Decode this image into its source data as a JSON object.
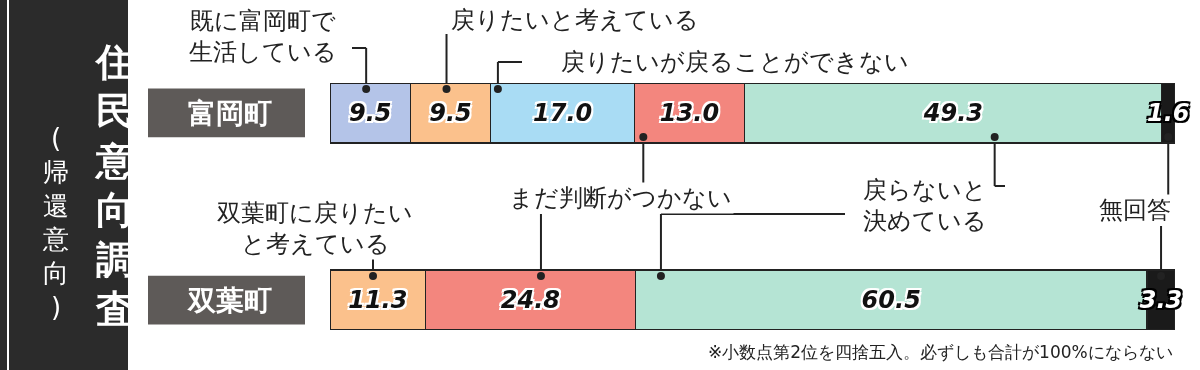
{
  "chart_data": {
    "type": "bar",
    "orientation": "horizontal",
    "stacked": true,
    "title": "住民意向調査",
    "subtitle": "(帰還意向)",
    "categories": [
      "富岡町",
      "双葉町"
    ],
    "series": [
      {
        "color": "#b4c4e8",
        "values": [
          9.5,
          null
        ],
        "value_labels": [
          "9.5",
          null
        ]
      },
      {
        "color": "#fbc18c",
        "values": [
          9.5,
          11.3
        ],
        "value_labels": [
          "9.5",
          "11.3"
        ]
      },
      {
        "color": "#a9dcf4",
        "values": [
          17.0,
          null
        ],
        "value_labels": [
          "17.0",
          null
        ]
      },
      {
        "color": "#f3867e",
        "values": [
          13.0,
          24.8
        ],
        "value_labels": [
          "13.0",
          "24.8"
        ]
      },
      {
        "color": "#b5e4d4",
        "values": [
          49.3,
          60.5
        ],
        "value_labels": [
          "49.3",
          "60.5"
        ]
      },
      {
        "color": "#1a1a1a",
        "values": [
          1.6,
          3.3
        ],
        "value_labels": [
          "1.6",
          "3.3"
        ]
      }
    ],
    "xlim": [
      0,
      99.9
    ],
    "tick_labels": "y",
    "annotations": [
      "既に富岡町で生活している",
      "戻りたいと考えている",
      "戻りたいが戻ることができない",
      "まだ判断がつかない",
      "戻らないと決めている",
      "無回答",
      "双葉町に戻りたいと考えている",
      "※小数点第2位を四捨五入。必ずしも合計が100%にならない"
    ]
  }
}
